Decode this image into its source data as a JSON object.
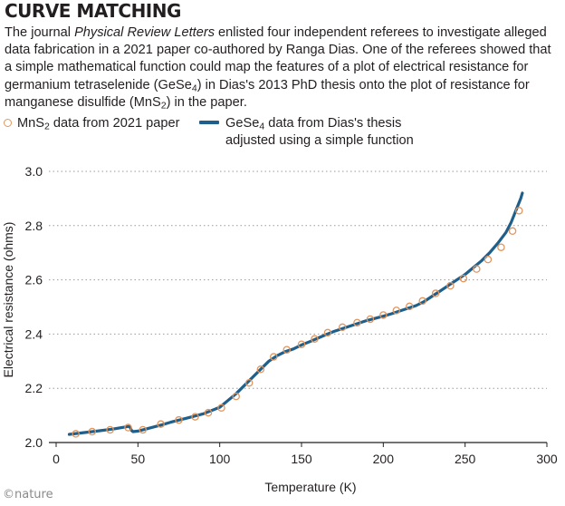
{
  "header": {
    "title": "CURVE MATCHING",
    "intro_1": "The journal ",
    "intro_journal": "Physical Review Letters",
    "intro_2": " enlisted four independent referees to investigate alleged data fabrication in a 2021 paper co-authored by Ranga Dias. One of the referees showed that a simple mathematical function could map the features of a plot of electrical resistance for germanium tetraselenide (GeSe",
    "intro_sub1": "4",
    "intro_3": ") in Dias's 2013 PhD thesis onto the plot of resistance for manganese disulfide (MnS",
    "intro_sub2": "2",
    "intro_4": ") in the paper."
  },
  "legend": {
    "mns2_prefix": "MnS",
    "mns2_sub": "2",
    "mns2_suffix": " data from 2021 paper",
    "gese4_prefix": "GeSe",
    "gese4_sub": "4",
    "gese4_line1_suffix": " data from Dias's thesis",
    "gese4_line2": "adjusted using a simple function"
  },
  "credit": "©nature",
  "colors": {
    "dots": "#e0965e",
    "line": "#1f5f8b",
    "grid": "#9a9a9a"
  },
  "chart_data": {
    "type": "line",
    "title": "CURVE MATCHING",
    "xlabel": "Temperature  (K)",
    "ylabel": "Electrical resistance (ohms)",
    "xlim": [
      0,
      300
    ],
    "ylim": [
      2.0,
      3.0
    ],
    "x_ticks": [
      0,
      50,
      100,
      150,
      200,
      250,
      300
    ],
    "y_ticks": [
      2.0,
      2.2,
      2.4,
      2.6,
      2.8,
      3.0
    ],
    "x_tick_labels": [
      "0",
      "50",
      "100",
      "150",
      "200",
      "250",
      "300"
    ],
    "y_tick_labels": [
      "2.0",
      "2.2",
      "2.4",
      "2.6",
      "2.8",
      "3.0"
    ],
    "grid": "horizontal dotted",
    "series": [
      {
        "name": "MnS2 data from 2021 paper",
        "style": "open-circles",
        "x": [
          12,
          22,
          33,
          44,
          53,
          64,
          75,
          85,
          93,
          101,
          110,
          118,
          125,
          133,
          141,
          150,
          158,
          166,
          175,
          184,
          192,
          200,
          208,
          216,
          224,
          232,
          241,
          249,
          257,
          264,
          272,
          279,
          283
        ],
        "y": [
          2.032,
          2.04,
          2.047,
          2.055,
          2.047,
          2.068,
          2.083,
          2.095,
          2.11,
          2.128,
          2.17,
          2.22,
          2.27,
          2.316,
          2.342,
          2.362,
          2.382,
          2.405,
          2.425,
          2.442,
          2.455,
          2.47,
          2.487,
          2.502,
          2.522,
          2.55,
          2.578,
          2.605,
          2.64,
          2.675,
          2.72,
          2.78,
          2.855
        ]
      },
      {
        "name": "GeSe4 data from Dias's thesis adjusted using a simple function",
        "style": "line",
        "x": [
          8,
          15,
          25,
          35,
          45,
          46,
          47,
          50,
          55,
          60,
          65,
          70,
          80,
          90,
          100,
          105,
          110,
          115,
          120,
          125,
          130,
          135,
          140,
          145,
          150,
          155,
          160,
          165,
          170,
          175,
          180,
          185,
          190,
          195,
          200,
          205,
          210,
          215,
          220,
          225,
          230,
          235,
          240,
          245,
          250,
          255,
          260,
          265,
          270,
          275,
          278,
          280,
          282,
          284,
          285
        ],
        "y": [
          2.03,
          2.035,
          2.042,
          2.05,
          2.06,
          2.045,
          2.04,
          2.042,
          2.05,
          2.058,
          2.066,
          2.075,
          2.09,
          2.106,
          2.13,
          2.155,
          2.18,
          2.21,
          2.24,
          2.27,
          2.3,
          2.32,
          2.335,
          2.345,
          2.36,
          2.372,
          2.385,
          2.398,
          2.41,
          2.42,
          2.43,
          2.44,
          2.45,
          2.458,
          2.466,
          2.475,
          2.485,
          2.495,
          2.505,
          2.52,
          2.54,
          2.56,
          2.58,
          2.6,
          2.62,
          2.645,
          2.67,
          2.7,
          2.735,
          2.775,
          2.81,
          2.84,
          2.87,
          2.9,
          2.92
        ]
      }
    ]
  }
}
